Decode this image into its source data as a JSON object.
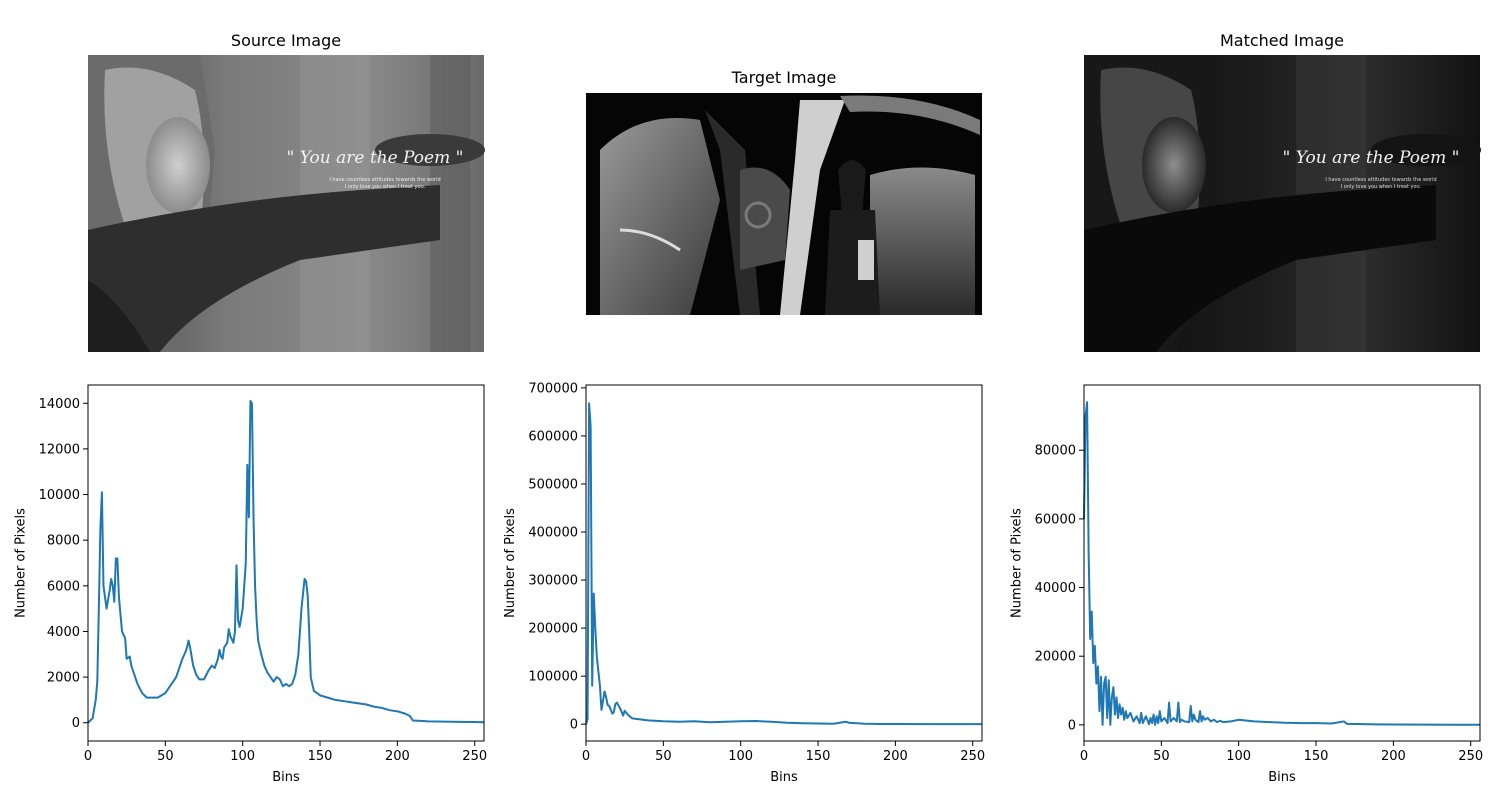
{
  "image_panels": [
    {
      "title": "Source Image",
      "scene": "source",
      "overlay_title": "\" You are the Poem \"",
      "overlay_lines": [
        "I have countless attitudes towards the world",
        "I only love you when I treat you."
      ]
    },
    {
      "title": "Target Image",
      "scene": "target"
    },
    {
      "title": "Matched Image",
      "scene": "matched",
      "overlay_title": "\" You are the Poem \"",
      "overlay_lines": [
        "I have countless attitudes towards the world",
        "I only love you when I treat you."
      ]
    }
  ],
  "colors": {
    "series": "#1f77b4"
  },
  "chart_data": [
    {
      "type": "line",
      "xlabel": "Bins",
      "ylabel": "Number of Pixels",
      "xlim": [
        0,
        256
      ],
      "ylim": [
        -800,
        14800
      ],
      "xticks": [
        0,
        50,
        100,
        150,
        200,
        250
      ],
      "yticks": [
        0,
        2000,
        4000,
        6000,
        8000,
        10000,
        12000,
        14000
      ],
      "x": [
        0,
        3,
        5,
        6,
        7,
        8,
        9,
        10,
        12,
        14,
        15,
        16,
        17,
        18,
        19,
        20,
        22,
        24,
        25,
        27,
        28,
        30,
        32,
        35,
        38,
        40,
        45,
        50,
        53,
        55,
        57,
        59,
        61,
        63,
        64,
        65,
        66,
        68,
        70,
        72,
        75,
        78,
        80,
        82,
        84,
        85,
        86,
        87,
        88,
        90,
        91,
        92,
        94,
        95,
        96,
        97,
        98,
        100,
        102,
        103,
        104,
        105,
        106,
        107,
        108,
        109,
        110,
        112,
        114,
        116,
        120,
        122,
        124,
        126,
        128,
        130,
        132,
        134,
        136,
        138,
        140,
        141,
        142,
        143,
        144,
        146,
        148,
        150,
        155,
        160,
        165,
        170,
        175,
        180,
        185,
        190,
        195,
        200,
        205,
        208,
        210,
        215,
        220,
        230,
        240,
        250,
        256
      ],
      "y": [
        0,
        200,
        1000,
        1800,
        5000,
        8500,
        10100,
        6000,
        5000,
        5800,
        6300,
        6000,
        5300,
        7200,
        7200,
        5500,
        4000,
        3700,
        2800,
        2900,
        2500,
        2100,
        1700,
        1300,
        1100,
        1100,
        1100,
        1300,
        1600,
        1800,
        2000,
        2400,
        2800,
        3100,
        3300,
        3600,
        3300,
        2500,
        2100,
        1900,
        1900,
        2300,
        2500,
        2400,
        2800,
        3200,
        2900,
        2800,
        3300,
        3500,
        4100,
        3800,
        3500,
        4000,
        6900,
        4500,
        4200,
        5000,
        7000,
        11300,
        9000,
        14100,
        14000,
        9000,
        6000,
        4500,
        3600,
        3000,
        2500,
        2200,
        1800,
        2000,
        1900,
        1600,
        1700,
        1600,
        1700,
        2100,
        3000,
        5000,
        6300,
        6200,
        5600,
        4000,
        2000,
        1400,
        1300,
        1200,
        1100,
        1000,
        950,
        900,
        850,
        800,
        700,
        650,
        550,
        500,
        400,
        300,
        100,
        80,
        60,
        50,
        40,
        30,
        20
      ]
    },
    {
      "type": "line",
      "xlabel": "Bins",
      "ylabel": "Number of Pixels",
      "xlim": [
        0,
        256
      ],
      "ylim": [
        -35000,
        706000
      ],
      "xticks": [
        0,
        50,
        100,
        150,
        200,
        250
      ],
      "yticks": [
        0,
        100000,
        200000,
        300000,
        400000,
        500000,
        600000,
        700000
      ],
      "x": [
        0,
        1,
        2,
        3,
        4,
        5,
        6,
        7,
        8,
        9,
        10,
        12,
        13,
        14,
        15,
        16,
        17,
        18,
        19,
        20,
        22,
        24,
        25,
        27,
        28,
        30,
        35,
        40,
        50,
        60,
        70,
        80,
        90,
        100,
        110,
        120,
        130,
        140,
        150,
        160,
        168,
        170,
        180,
        190,
        200,
        220,
        240,
        256
      ],
      "y": [
        0,
        10000,
        668000,
        620000,
        80000,
        272000,
        200000,
        140000,
        110000,
        80000,
        30000,
        68000,
        56000,
        40000,
        38000,
        30000,
        22000,
        25000,
        42000,
        45000,
        33000,
        18000,
        28000,
        20000,
        17000,
        12000,
        10000,
        8000,
        6000,
        5000,
        6000,
        4000,
        5000,
        6000,
        6500,
        5000,
        3000,
        2000,
        1500,
        1000,
        5000,
        3000,
        1000,
        500,
        300,
        200,
        100,
        50
      ]
    },
    {
      "type": "line",
      "xlabel": "Bins",
      "ylabel": "Number of Pixels",
      "xlim": [
        0,
        256
      ],
      "ylim": [
        -4700,
        99000
      ],
      "xticks": [
        0,
        50,
        100,
        150,
        200,
        250
      ],
      "yticks": [
        0,
        20000,
        40000,
        60000,
        80000
      ],
      "x": [
        0,
        1,
        2,
        3,
        4,
        5,
        6,
        7,
        8,
        9,
        10,
        11,
        12,
        13,
        14,
        15,
        16,
        17,
        18,
        19,
        20,
        21,
        22,
        23,
        24,
        25,
        26,
        27,
        28,
        30,
        32,
        34,
        36,
        37,
        38,
        40,
        42,
        43,
        44,
        45,
        46,
        47,
        48,
        49,
        50,
        52,
        54,
        55,
        56,
        58,
        60,
        61,
        62,
        63,
        65,
        68,
        69,
        70,
        71,
        72,
        74,
        75,
        76,
        77,
        78,
        80,
        82,
        84,
        86,
        88,
        90,
        95,
        100,
        110,
        120,
        130,
        140,
        150,
        160,
        168,
        170,
        180,
        190,
        200,
        220,
        240,
        256
      ],
      "y": [
        60000,
        90000,
        94000,
        50000,
        25000,
        33000,
        18000,
        23000,
        12000,
        17000,
        4000,
        14000,
        0,
        12000,
        14000,
        2000,
        13000,
        0,
        8000,
        11000,
        3000,
        8000,
        2000,
        6000,
        3000,
        5000,
        1500,
        4000,
        2000,
        3500,
        1000,
        2500,
        500,
        3500,
        500,
        2500,
        200,
        2000,
        500,
        3000,
        0,
        2500,
        500,
        4000,
        1000,
        2000,
        500,
        6500,
        1000,
        2000,
        1000,
        6500,
        800,
        1500,
        1000,
        800,
        5500,
        1000,
        3000,
        1500,
        800,
        4000,
        1000,
        2500,
        1500,
        2000,
        1000,
        1500,
        800,
        1200,
        800,
        1000,
        1500,
        1000,
        800,
        600,
        500,
        500,
        400,
        1000,
        300,
        200,
        150,
        100,
        80,
        50,
        30
      ]
    }
  ]
}
